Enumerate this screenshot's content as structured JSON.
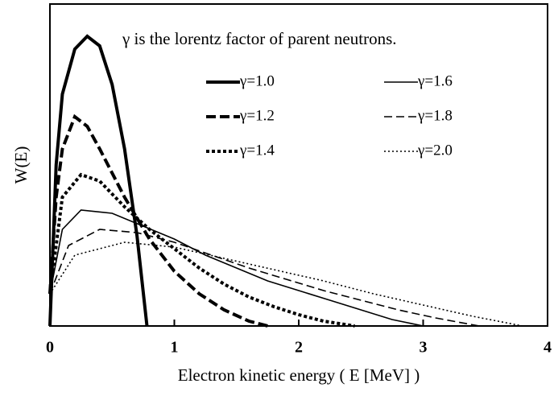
{
  "chart_data": {
    "type": "line",
    "annotation": "γ is the lorentz factor of parent neutrons.",
    "x_label": "Electron kinetic energy ( E [MeV] )",
    "y_label": "W(E)",
    "xlim": [
      0,
      4
    ],
    "xticks": [
      0,
      1,
      2,
      3,
      4
    ],
    "ylim": [
      0,
      1
    ],
    "series": [
      {
        "name": "γ=1.0",
        "color": "#000",
        "width": 4,
        "dash": "none",
        "x": [
          0,
          0.05,
          0.1,
          0.2,
          0.3,
          0.4,
          0.5,
          0.6,
          0.7,
          0.78
        ],
        "values": [
          0,
          0.5,
          0.72,
          0.86,
          0.9,
          0.87,
          0.75,
          0.55,
          0.28,
          0
        ]
      },
      {
        "name": "γ=1.2",
        "color": "#000",
        "width": 4,
        "dash": "12,5",
        "x": [
          0,
          0.05,
          0.1,
          0.2,
          0.3,
          0.4,
          0.6,
          0.8,
          1.0,
          1.2,
          1.4,
          1.6,
          1.75
        ],
        "values": [
          0.1,
          0.4,
          0.55,
          0.65,
          0.62,
          0.55,
          0.4,
          0.27,
          0.17,
          0.1,
          0.05,
          0.015,
          0
        ]
      },
      {
        "name": "γ=1.4",
        "color": "#000",
        "width": 4,
        "dash": "4,3",
        "x": [
          0,
          0.1,
          0.25,
          0.4,
          0.6,
          0.8,
          1.0,
          1.2,
          1.4,
          1.6,
          1.8,
          2.0,
          2.2,
          2.45
        ],
        "values": [
          0.1,
          0.4,
          0.47,
          0.45,
          0.37,
          0.3,
          0.24,
          0.18,
          0.13,
          0.09,
          0.06,
          0.035,
          0.015,
          0
        ]
      },
      {
        "name": "γ=1.6",
        "color": "#000",
        "width": 1.6,
        "dash": "none",
        "x": [
          0,
          0.1,
          0.25,
          0.5,
          0.75,
          1,
          1.25,
          1.5,
          1.75,
          2,
          2.25,
          2.5,
          2.75,
          3.0
        ],
        "values": [
          0.1,
          0.3,
          0.36,
          0.35,
          0.31,
          0.27,
          0.22,
          0.18,
          0.14,
          0.11,
          0.08,
          0.05,
          0.02,
          0
        ]
      },
      {
        "name": "γ=1.8",
        "color": "#000",
        "width": 1.6,
        "dash": "10,5",
        "x": [
          0,
          0.15,
          0.4,
          0.7,
          1,
          1.3,
          1.6,
          1.9,
          2.2,
          2.5,
          2.8,
          3.1,
          3.45
        ],
        "values": [
          0.1,
          0.25,
          0.3,
          0.29,
          0.26,
          0.22,
          0.18,
          0.145,
          0.11,
          0.08,
          0.05,
          0.025,
          0
        ]
      },
      {
        "name": "γ=2.0",
        "color": "#000",
        "width": 1.6,
        "dash": "2,3",
        "x": [
          0,
          0.2,
          0.6,
          1,
          1.4,
          1.8,
          2.2,
          2.6,
          3.0,
          3.4,
          3.8
        ],
        "values": [
          0.1,
          0.22,
          0.26,
          0.245,
          0.21,
          0.175,
          0.14,
          0.1,
          0.065,
          0.03,
          0
        ]
      }
    ]
  }
}
